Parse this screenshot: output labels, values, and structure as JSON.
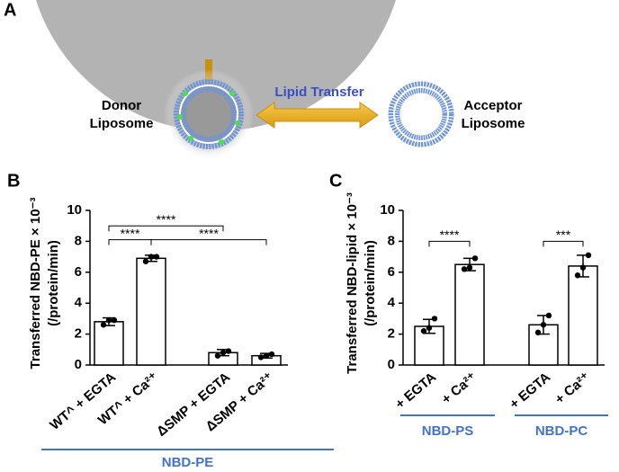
{
  "panel_a": {
    "label": "A",
    "donor": [
      "Donor",
      "Liposome"
    ],
    "acceptor": [
      "Acceptor",
      "Liposome"
    ],
    "arrow_label": "Lipid Transfer"
  },
  "chart_data": [
    {
      "type": "bar",
      "panel": "B",
      "ylabel": [
        "Transferred NBD-PE × 10⁻³",
        "(/protein/min)"
      ],
      "categories": [
        "WT^ + EGTA",
        "WT^ + Ca²⁺",
        "ΔSMP + EGTA",
        "ΔSMP + Ca²⁺"
      ],
      "values": [
        2.8,
        6.9,
        0.8,
        0.6
      ],
      "errors": [
        0.25,
        0.2,
        0.2,
        0.15
      ],
      "points": [
        [
          2.6,
          2.9,
          2.9
        ],
        [
          6.7,
          7.0,
          7.0
        ],
        [
          0.6,
          0.8,
          0.9
        ],
        [
          0.5,
          0.6,
          0.7
        ]
      ],
      "color": "#ffffff",
      "ylim": [
        0,
        10
      ],
      "yticks": [
        0,
        2,
        4,
        6,
        8,
        10
      ],
      "annotations": [
        {
          "from": 0,
          "to": 1,
          "y": 8.1,
          "label": "****"
        },
        {
          "from": 0,
          "to": 2,
          "y": 9.0,
          "label": "****"
        },
        {
          "from": 1,
          "to": 3,
          "y": 8.1,
          "label": "****"
        }
      ],
      "groups": [
        {
          "label": "NBD-PE",
          "from": 0,
          "to": 3
        }
      ],
      "group_color": "#4472c4"
    },
    {
      "type": "bar",
      "panel": "C",
      "ylabel": [
        "Transferred NBD-lipid × 10⁻³",
        "(/protein/min)"
      ],
      "categories": [
        "+ EGTA",
        "+ Ca²⁺",
        "+ EGTA",
        "+ Ca²⁺"
      ],
      "values": [
        2.5,
        6.5,
        2.6,
        6.4
      ],
      "errors": [
        0.45,
        0.4,
        0.6,
        0.7
      ],
      "points": [
        [
          2.2,
          2.4,
          3.0
        ],
        [
          6.2,
          6.3,
          6.9
        ],
        [
          2.1,
          2.6,
          3.2
        ],
        [
          5.8,
          6.3,
          7.1
        ]
      ],
      "color": "#ffffff",
      "ylim": [
        0,
        10
      ],
      "yticks": [
        0,
        2,
        4,
        6,
        8,
        10
      ],
      "annotations": [
        {
          "from": 0,
          "to": 1,
          "y": 8.0,
          "label": "****"
        },
        {
          "from": 2,
          "to": 3,
          "y": 8.0,
          "label": "***"
        }
      ],
      "groups": [
        {
          "label": "NBD-PS",
          "from": 0,
          "to": 1
        },
        {
          "label": "NBD-PC",
          "from": 2,
          "to": 3
        }
      ],
      "group_color": "#4472c4"
    }
  ]
}
